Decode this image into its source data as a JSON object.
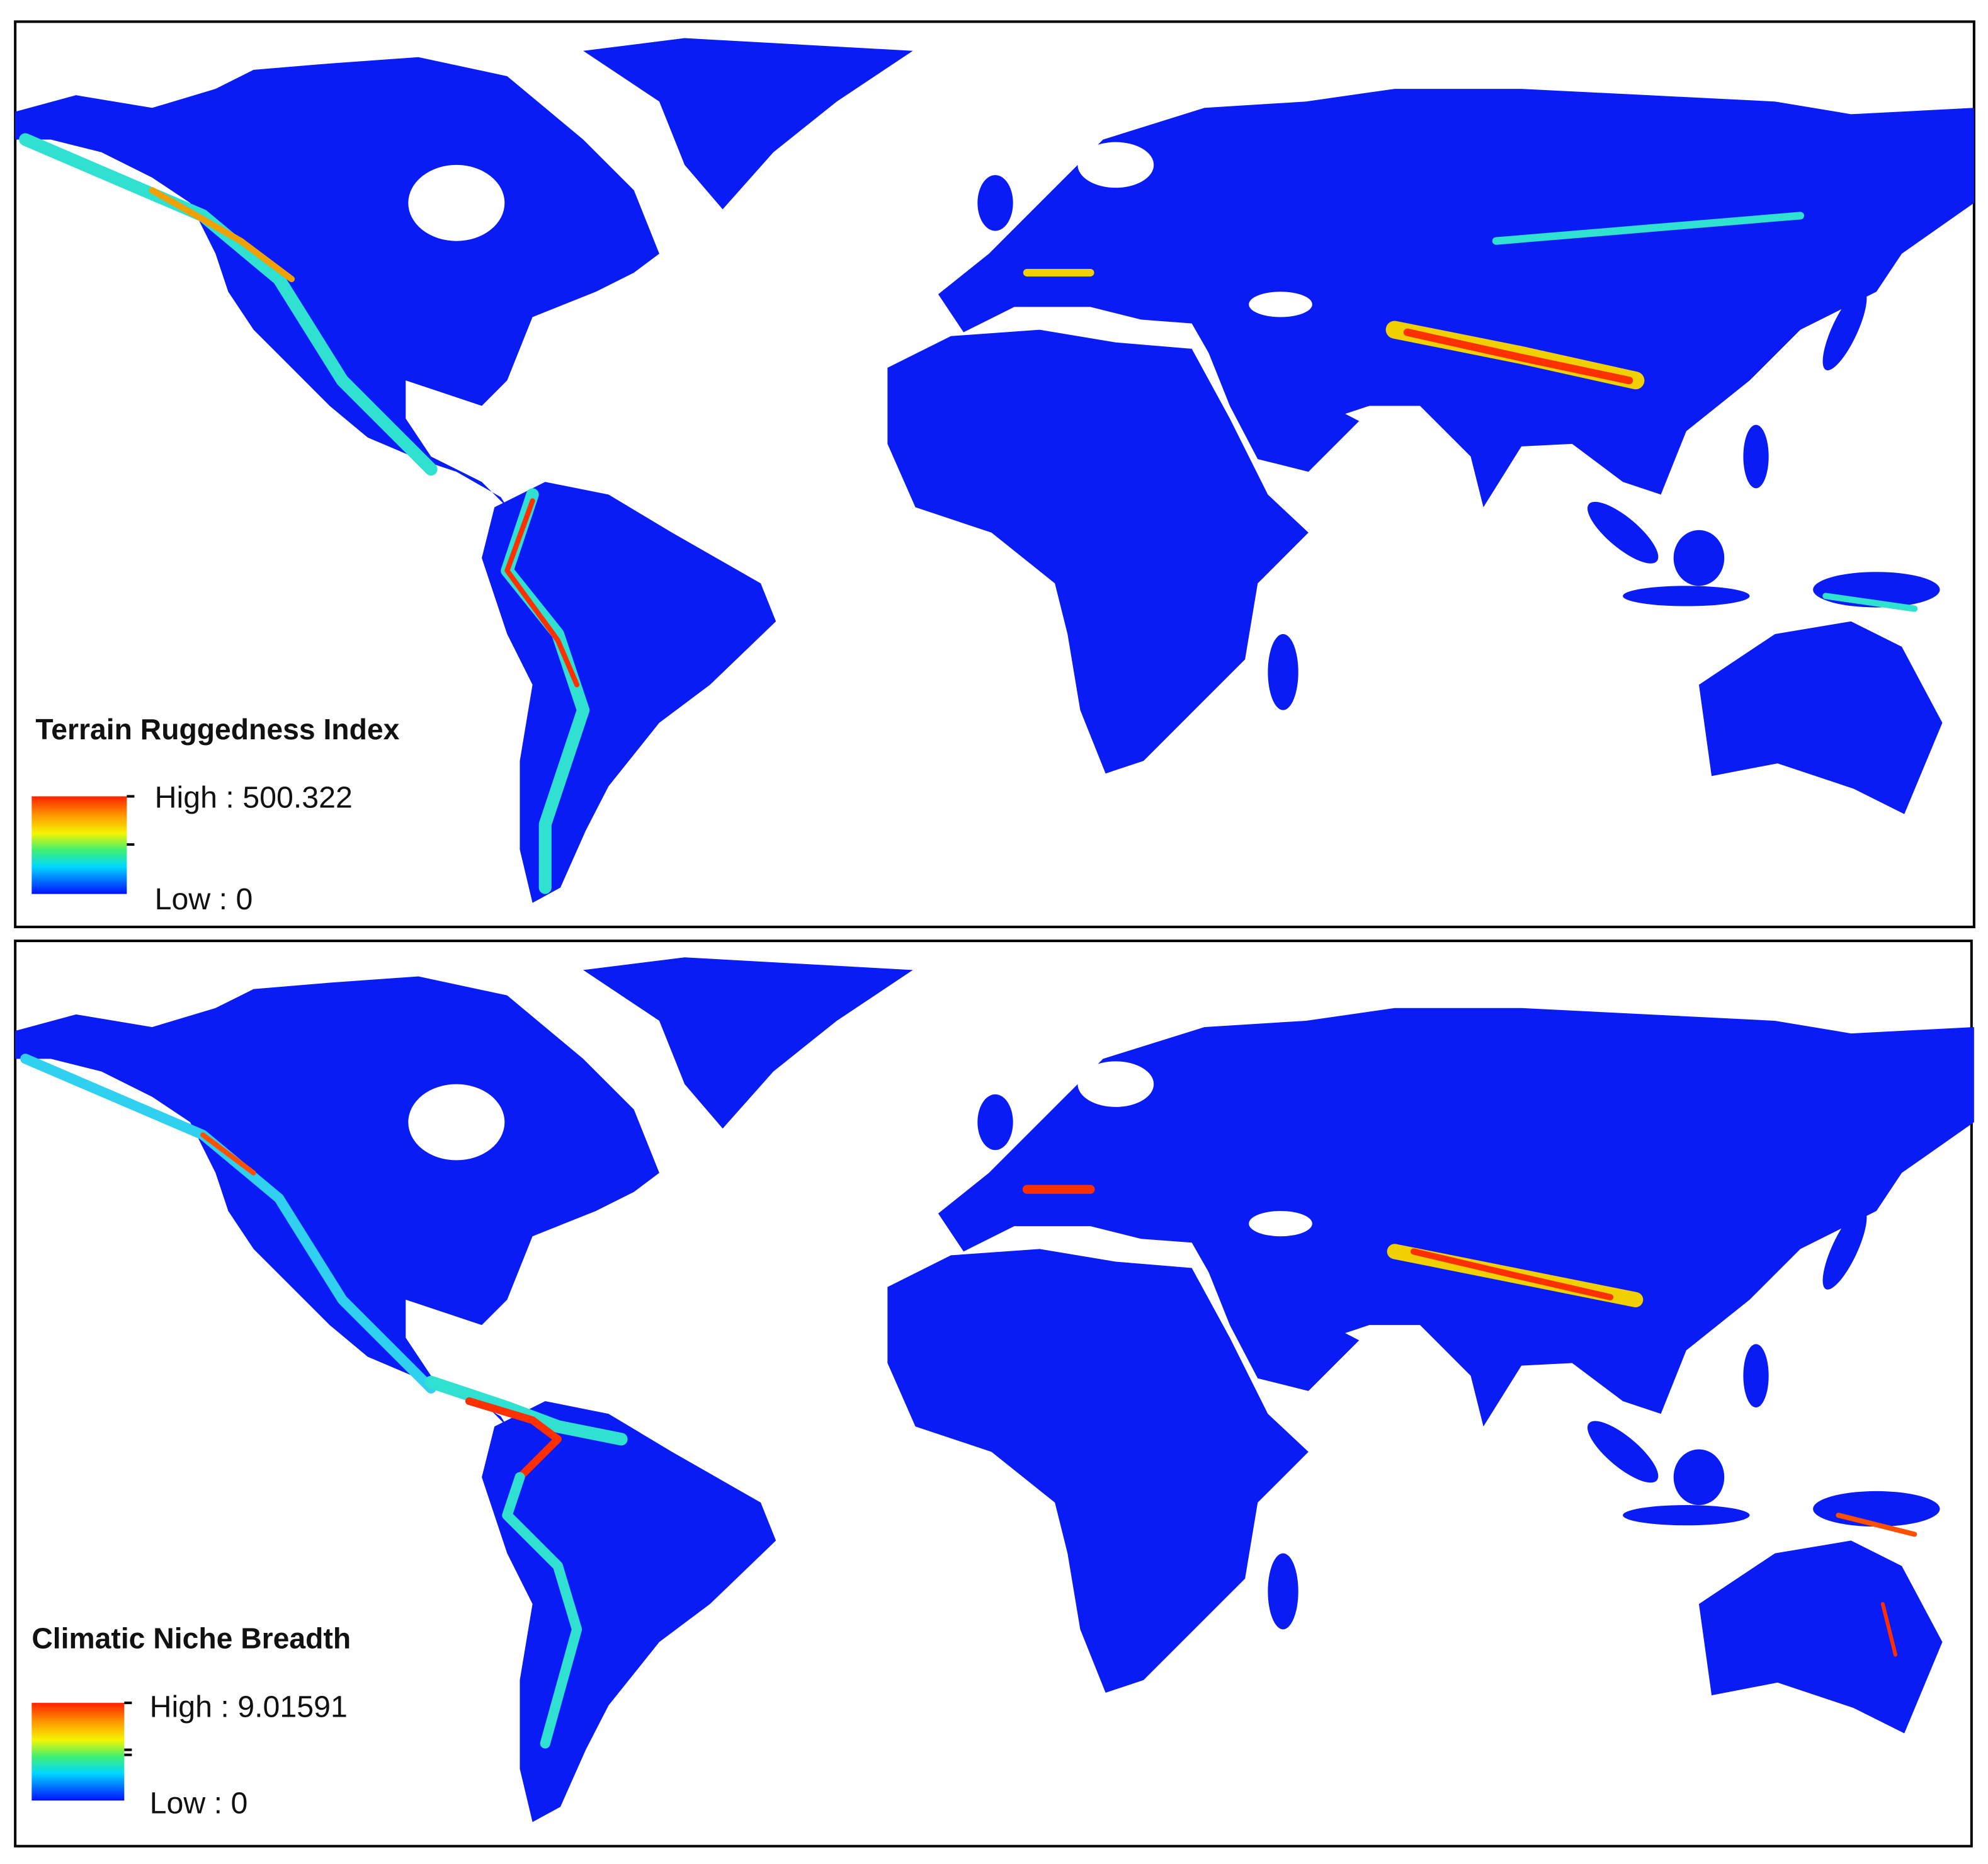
{
  "panels": [
    {
      "legend": {
        "title": "Terrain Ruggedness Index",
        "high": "High : 500.322",
        "low": "Low : 0"
      }
    },
    {
      "legend": {
        "title": "Climatic Niche Breadth",
        "high": "High : 9.01591",
        "low": "Low : 0"
      }
    }
  ]
}
